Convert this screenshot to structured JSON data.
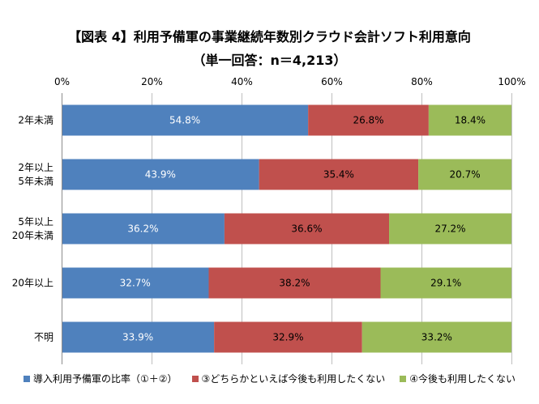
{
  "chart_data": {
    "type": "bar",
    "orientation": "horizontal",
    "stacked": true,
    "title": "【図表 4】利用予備軍の事業継続年数別クラウド会計ソフト利用意向",
    "subtitle": "（単一回答：n＝4,213）",
    "categories": [
      [
        "2年未満"
      ],
      [
        "2年以上",
        "5年未満"
      ],
      [
        "5年以上",
        "20年未満"
      ],
      [
        "20年以上"
      ],
      [
        "不明"
      ]
    ],
    "xlim": [
      0,
      100
    ],
    "xticks": [
      "0%",
      "20%",
      "40%",
      "60%",
      "80%",
      "100%"
    ],
    "grid": true,
    "legend_position": "bottom",
    "series": [
      {
        "name": "導入利用予備軍の比率（①＋②）",
        "color": "#4f81bd",
        "values": [
          54.8,
          43.9,
          36.2,
          32.7,
          33.9
        ],
        "labels": [
          "54.8%",
          "43.9%",
          "36.2%",
          "32.7%",
          "33.9%"
        ]
      },
      {
        "name": "③どちらかといえば今後も利用したくない",
        "color": "#c0504d",
        "values": [
          26.8,
          35.4,
          36.6,
          38.2,
          32.9
        ],
        "labels": [
          "26.8%",
          "35.4%",
          "36.6%",
          "38.2%",
          "32.9%"
        ]
      },
      {
        "name": "④今後も利用したくない",
        "color": "#9bbb59",
        "values": [
          18.4,
          20.7,
          27.2,
          29.1,
          33.2
        ],
        "labels": [
          "18.4%",
          "20.7%",
          "27.2%",
          "29.1%",
          "33.2%"
        ]
      }
    ]
  }
}
